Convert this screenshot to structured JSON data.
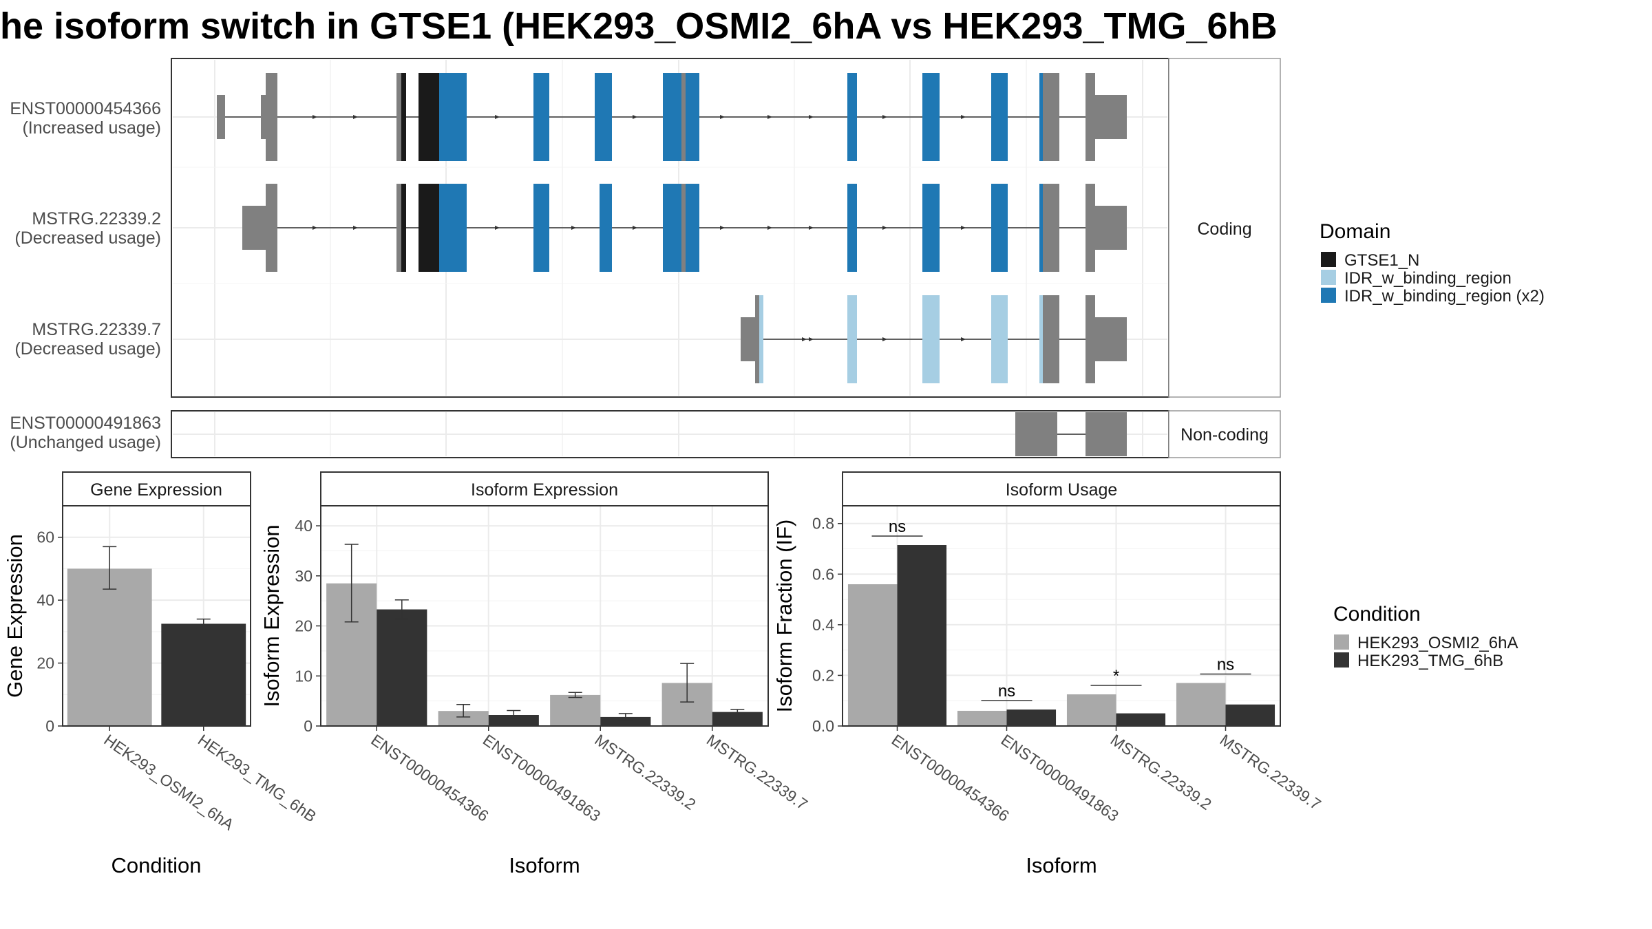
{
  "title": "he isoform switch in GTSE1 (HEK293_OSMI2_6hA vs HEK293_TMG_6hB",
  "colors": {
    "exon_grey": "#808080",
    "domain_gtse1_n": "#1a1a1a",
    "domain_idr": "#a6cee3",
    "domain_idr_x2": "#1f78b4",
    "cond_a": "#a9a9a9",
    "cond_b": "#333333",
    "panel_border": "#333333",
    "grid": "#ebebeb"
  },
  "structure": {
    "facet_coding": "Coding",
    "facet_noncoding": "Non-coding",
    "isoforms": [
      {
        "id": "ENST00000454366",
        "usage": "(Increased usage)",
        "type": "coding"
      },
      {
        "id": "MSTRG.22339.2",
        "usage": "(Decreased usage)",
        "type": "coding"
      },
      {
        "id": "MSTRG.22339.7",
        "usage": "(Decreased usage)",
        "type": "coding"
      },
      {
        "id": "ENST00000491863",
        "usage": "(Unchanged usage)",
        "type": "noncoding"
      }
    ],
    "domain_legend": {
      "title": "Domain",
      "items": [
        {
          "label": "GTSE1_N",
          "color": "#1a1a1a"
        },
        {
          "label": "IDR_w_binding_region",
          "color": "#a6cee3"
        },
        {
          "label": "IDR_w_binding_region (x2)",
          "color": "#1f78b4"
        }
      ]
    }
  },
  "condition_legend": {
    "title": "Condition",
    "items": [
      {
        "label": "HEK293_OSMI2_6hA",
        "color": "#a9a9a9"
      },
      {
        "label": "HEK293_TMG_6hB",
        "color": "#333333"
      }
    ]
  },
  "chart_data": [
    {
      "type": "bar",
      "title": "Gene Expression",
      "xlabel": "Condition",
      "ylabel": "Gene Expression",
      "categories": [
        "HEK293_OSMI2_6hA",
        "HEK293_TMG_6hB"
      ],
      "values": [
        50,
        32.5
      ],
      "error": [
        [
          43.5,
          57
        ],
        [
          31,
          34
        ]
      ],
      "ylim": [
        0,
        70
      ],
      "yticks": [
        0,
        20,
        40,
        60
      ],
      "grid": true
    },
    {
      "type": "bar",
      "title": "Isoform Expression",
      "xlabel": "Isoform",
      "ylabel": "Isoform Expression",
      "categories": [
        "ENST00000454366",
        "ENST00000491863",
        "MSTRG.22339.2",
        "MSTRG.22339.7"
      ],
      "series": [
        {
          "name": "HEK293_OSMI2_6hA",
          "values": [
            28.5,
            3,
            6.2,
            8.6
          ],
          "error": [
            [
              20.8,
              36.3
            ],
            [
              1.8,
              4.3
            ],
            [
              5.7,
              6.7
            ],
            [
              4.8,
              12.5
            ]
          ]
        },
        {
          "name": "HEK293_TMG_6hB",
          "values": [
            23.3,
            2.2,
            1.8,
            2.8
          ],
          "error": [
            [
              21.4,
              25.2
            ],
            [
              1.3,
              3.1
            ],
            [
              1.1,
              2.5
            ],
            [
              2.3,
              3.3
            ]
          ]
        }
      ],
      "ylim": [
        0,
        44
      ],
      "yticks": [
        0,
        10,
        20,
        30,
        40
      ],
      "grid": true
    },
    {
      "type": "bar",
      "title": "Isoform Usage",
      "xlabel": "Isoform",
      "ylabel": "Isoform Fraction (IF)",
      "categories": [
        "ENST00000454366",
        "ENST00000491863",
        "MSTRG.22339.2",
        "MSTRG.22339.7"
      ],
      "series": [
        {
          "name": "HEK293_OSMI2_6hA",
          "values": [
            0.56,
            0.06,
            0.125,
            0.17
          ]
        },
        {
          "name": "HEK293_TMG_6hB",
          "values": [
            0.715,
            0.065,
            0.05,
            0.085
          ]
        }
      ],
      "annotations": [
        "ns",
        "ns",
        "*",
        "ns"
      ],
      "ylim": [
        0,
        0.87
      ],
      "yticks": [
        "0.0",
        "0.2",
        "0.4",
        "0.6",
        "0.8"
      ],
      "grid": true
    }
  ]
}
